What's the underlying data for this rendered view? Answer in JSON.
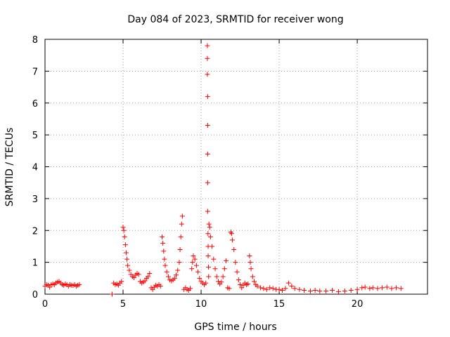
{
  "chart_data": {
    "type": "scatter",
    "title": "Day 084 of 2023, SRMTID for receiver wong",
    "xlabel": "GPS time / hours",
    "ylabel": "SRMTID / TECUs",
    "xlim": [
      0,
      24.5
    ],
    "ylim": [
      0,
      8
    ],
    "grid": true,
    "x_ticks": [
      0,
      5,
      10,
      15,
      20
    ],
    "y_ticks": [
      0,
      1,
      2,
      3,
      4,
      5,
      6,
      7,
      8
    ],
    "x_tick_labels": [
      "0",
      "5",
      "10",
      "15",
      "20"
    ],
    "y_tick_labels": [
      "0",
      "1",
      "2",
      "3",
      "4",
      "5",
      "6",
      "7",
      "8"
    ],
    "marker": "plus",
    "marker_color": "#ff0000",
    "series": [
      {
        "name": "SRMTID",
        "points": [
          [
            0.0,
            0.25
          ],
          [
            0.1,
            0.3
          ],
          [
            0.2,
            0.28
          ],
          [
            0.3,
            0.22
          ],
          [
            0.4,
            0.3
          ],
          [
            0.5,
            0.32
          ],
          [
            0.6,
            0.3
          ],
          [
            0.7,
            0.35
          ],
          [
            0.8,
            0.38
          ],
          [
            0.9,
            0.4
          ],
          [
            1.0,
            0.35
          ],
          [
            1.1,
            0.3
          ],
          [
            1.2,
            0.28
          ],
          [
            1.3,
            0.32
          ],
          [
            1.4,
            0.3
          ],
          [
            1.5,
            0.25
          ],
          [
            1.6,
            0.3
          ],
          [
            1.7,
            0.28
          ],
          [
            1.8,
            0.27
          ],
          [
            1.9,
            0.3
          ],
          [
            2.0,
            0.25
          ],
          [
            2.1,
            0.28
          ],
          [
            2.2,
            0.3
          ],
          [
            4.3,
            0.0
          ],
          [
            4.4,
            0.35
          ],
          [
            4.5,
            0.3
          ],
          [
            4.6,
            0.32
          ],
          [
            4.7,
            0.28
          ],
          [
            4.8,
            0.35
          ],
          [
            4.9,
            0.4
          ],
          [
            5.0,
            2.1
          ],
          [
            5.05,
            2.0
          ],
          [
            5.1,
            1.8
          ],
          [
            5.15,
            1.55
          ],
          [
            5.2,
            1.3
          ],
          [
            5.25,
            1.1
          ],
          [
            5.3,
            0.9
          ],
          [
            5.4,
            0.75
          ],
          [
            5.5,
            0.62
          ],
          [
            5.6,
            0.55
          ],
          [
            5.7,
            0.52
          ],
          [
            5.8,
            0.6
          ],
          [
            5.9,
            0.65
          ],
          [
            6.0,
            0.62
          ],
          [
            6.1,
            0.4
          ],
          [
            6.2,
            0.35
          ],
          [
            6.3,
            0.38
          ],
          [
            6.4,
            0.42
          ],
          [
            6.5,
            0.5
          ],
          [
            6.6,
            0.55
          ],
          [
            6.7,
            0.65
          ],
          [
            6.8,
            0.2
          ],
          [
            6.9,
            0.15
          ],
          [
            7.0,
            0.22
          ],
          [
            7.1,
            0.28
          ],
          [
            7.2,
            0.25
          ],
          [
            7.3,
            0.3
          ],
          [
            7.4,
            0.25
          ],
          [
            7.5,
            1.8
          ],
          [
            7.55,
            1.6
          ],
          [
            7.6,
            1.35
          ],
          [
            7.65,
            1.1
          ],
          [
            7.7,
            0.9
          ],
          [
            7.8,
            0.7
          ],
          [
            7.9,
            0.55
          ],
          [
            8.0,
            0.45
          ],
          [
            8.1,
            0.42
          ],
          [
            8.2,
            0.45
          ],
          [
            8.3,
            0.5
          ],
          [
            8.4,
            0.6
          ],
          [
            8.5,
            0.75
          ],
          [
            8.6,
            1.0
          ],
          [
            8.65,
            1.4
          ],
          [
            8.7,
            1.8
          ],
          [
            8.75,
            2.2
          ],
          [
            8.8,
            2.45
          ],
          [
            8.9,
            0.15
          ],
          [
            9.0,
            0.2
          ],
          [
            9.1,
            0.15
          ],
          [
            9.2,
            0.12
          ],
          [
            9.3,
            0.18
          ],
          [
            9.4,
            0.8
          ],
          [
            9.45,
            1.0
          ],
          [
            9.5,
            1.2
          ],
          [
            9.6,
            1.1
          ],
          [
            9.7,
            0.9
          ],
          [
            9.8,
            0.7
          ],
          [
            9.9,
            0.5
          ],
          [
            10.0,
            0.4
          ],
          [
            10.1,
            0.35
          ],
          [
            10.2,
            0.3
          ],
          [
            10.3,
            0.35
          ],
          [
            10.4,
            7.8
          ],
          [
            10.4,
            7.4
          ],
          [
            10.4,
            6.9
          ],
          [
            10.42,
            6.2
          ],
          [
            10.42,
            5.3
          ],
          [
            10.42,
            4.4
          ],
          [
            10.42,
            3.5
          ],
          [
            10.42,
            2.6
          ],
          [
            10.44,
            1.9
          ],
          [
            10.45,
            1.5
          ],
          [
            10.45,
            1.2
          ],
          [
            10.47,
            0.85
          ],
          [
            10.48,
            0.55
          ],
          [
            10.5,
            2.2
          ],
          [
            10.55,
            2.1
          ],
          [
            10.6,
            1.8
          ],
          [
            10.7,
            1.5
          ],
          [
            10.8,
            1.1
          ],
          [
            10.9,
            0.8
          ],
          [
            11.0,
            0.55
          ],
          [
            11.1,
            0.4
          ],
          [
            11.2,
            0.32
          ],
          [
            11.3,
            0.38
          ],
          [
            11.4,
            0.55
          ],
          [
            11.5,
            0.8
          ],
          [
            11.6,
            1.05
          ],
          [
            11.7,
            0.2
          ],
          [
            11.8,
            0.18
          ],
          [
            11.9,
            1.95
          ],
          [
            11.95,
            1.9
          ],
          [
            12.0,
            1.7
          ],
          [
            12.1,
            1.4
          ],
          [
            12.2,
            1.0
          ],
          [
            12.3,
            0.7
          ],
          [
            12.4,
            0.45
          ],
          [
            12.5,
            0.3
          ],
          [
            12.6,
            0.2
          ],
          [
            12.7,
            0.28
          ],
          [
            12.8,
            0.35
          ],
          [
            12.9,
            0.3
          ],
          [
            13.0,
            0.32
          ],
          [
            13.1,
            1.2
          ],
          [
            13.15,
            1.0
          ],
          [
            13.2,
            0.8
          ],
          [
            13.3,
            0.55
          ],
          [
            13.4,
            0.4
          ],
          [
            13.5,
            0.3
          ],
          [
            13.6,
            0.25
          ],
          [
            13.8,
            0.2
          ],
          [
            14.0,
            0.18
          ],
          [
            14.2,
            0.15
          ],
          [
            14.4,
            0.2
          ],
          [
            14.6,
            0.18
          ],
          [
            14.8,
            0.15
          ],
          [
            15.0,
            0.15
          ],
          [
            15.2,
            0.12
          ],
          [
            15.4,
            0.18
          ],
          [
            15.6,
            0.35
          ],
          [
            15.8,
            0.25
          ],
          [
            16.0,
            0.18
          ],
          [
            16.3,
            0.15
          ],
          [
            16.6,
            0.12
          ],
          [
            17.0,
            0.1
          ],
          [
            17.3,
            0.12
          ],
          [
            17.6,
            0.1
          ],
          [
            18.0,
            0.1
          ],
          [
            18.4,
            0.12
          ],
          [
            18.8,
            0.08
          ],
          [
            19.2,
            0.1
          ],
          [
            19.6,
            0.12
          ],
          [
            20.0,
            0.15
          ],
          [
            20.3,
            0.2
          ],
          [
            20.5,
            0.22
          ],
          [
            20.8,
            0.18
          ],
          [
            21.0,
            0.2
          ],
          [
            21.3,
            0.18
          ],
          [
            21.6,
            0.2
          ],
          [
            21.9,
            0.22
          ],
          [
            22.2,
            0.18
          ],
          [
            22.5,
            0.2
          ],
          [
            22.8,
            0.18
          ]
        ]
      }
    ]
  }
}
